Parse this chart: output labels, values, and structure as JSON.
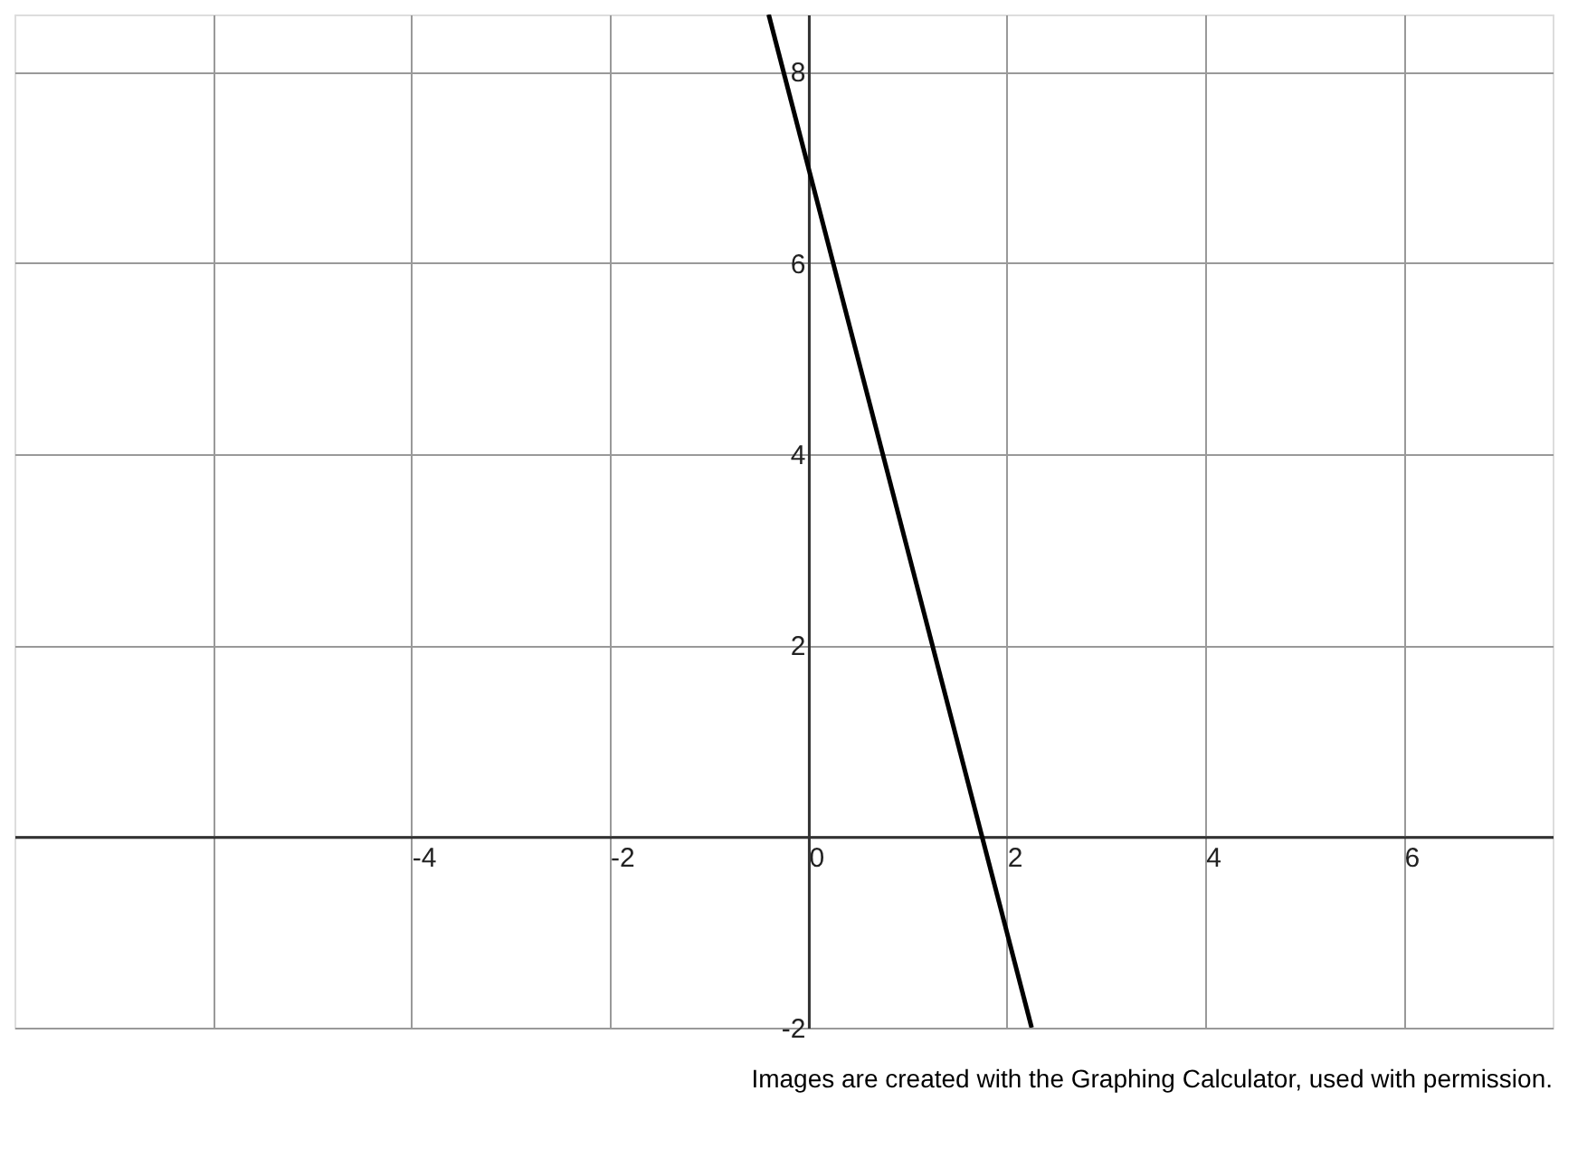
{
  "chart_data": {
    "type": "line",
    "x": [
      -0.4,
      2.25
    ],
    "series": [
      {
        "color": "#000000",
        "values": [
          8.6,
          -2
        ]
      }
    ],
    "xlim": [
      -8,
      7.5
    ],
    "ylim": [
      -2,
      8.6
    ],
    "xticks": [
      {
        "value": -6,
        "label": null
      },
      -4,
      -2,
      0,
      2,
      4,
      6
    ],
    "yticks": [
      -2,
      {
        "value": 0,
        "label": null
      },
      2,
      4,
      6,
      8
    ],
    "grid": true,
    "marker": "none",
    "line_style": "solid",
    "annotations": [
      "Images are created with the Graphing Calculator, used with permission."
    ]
  }
}
